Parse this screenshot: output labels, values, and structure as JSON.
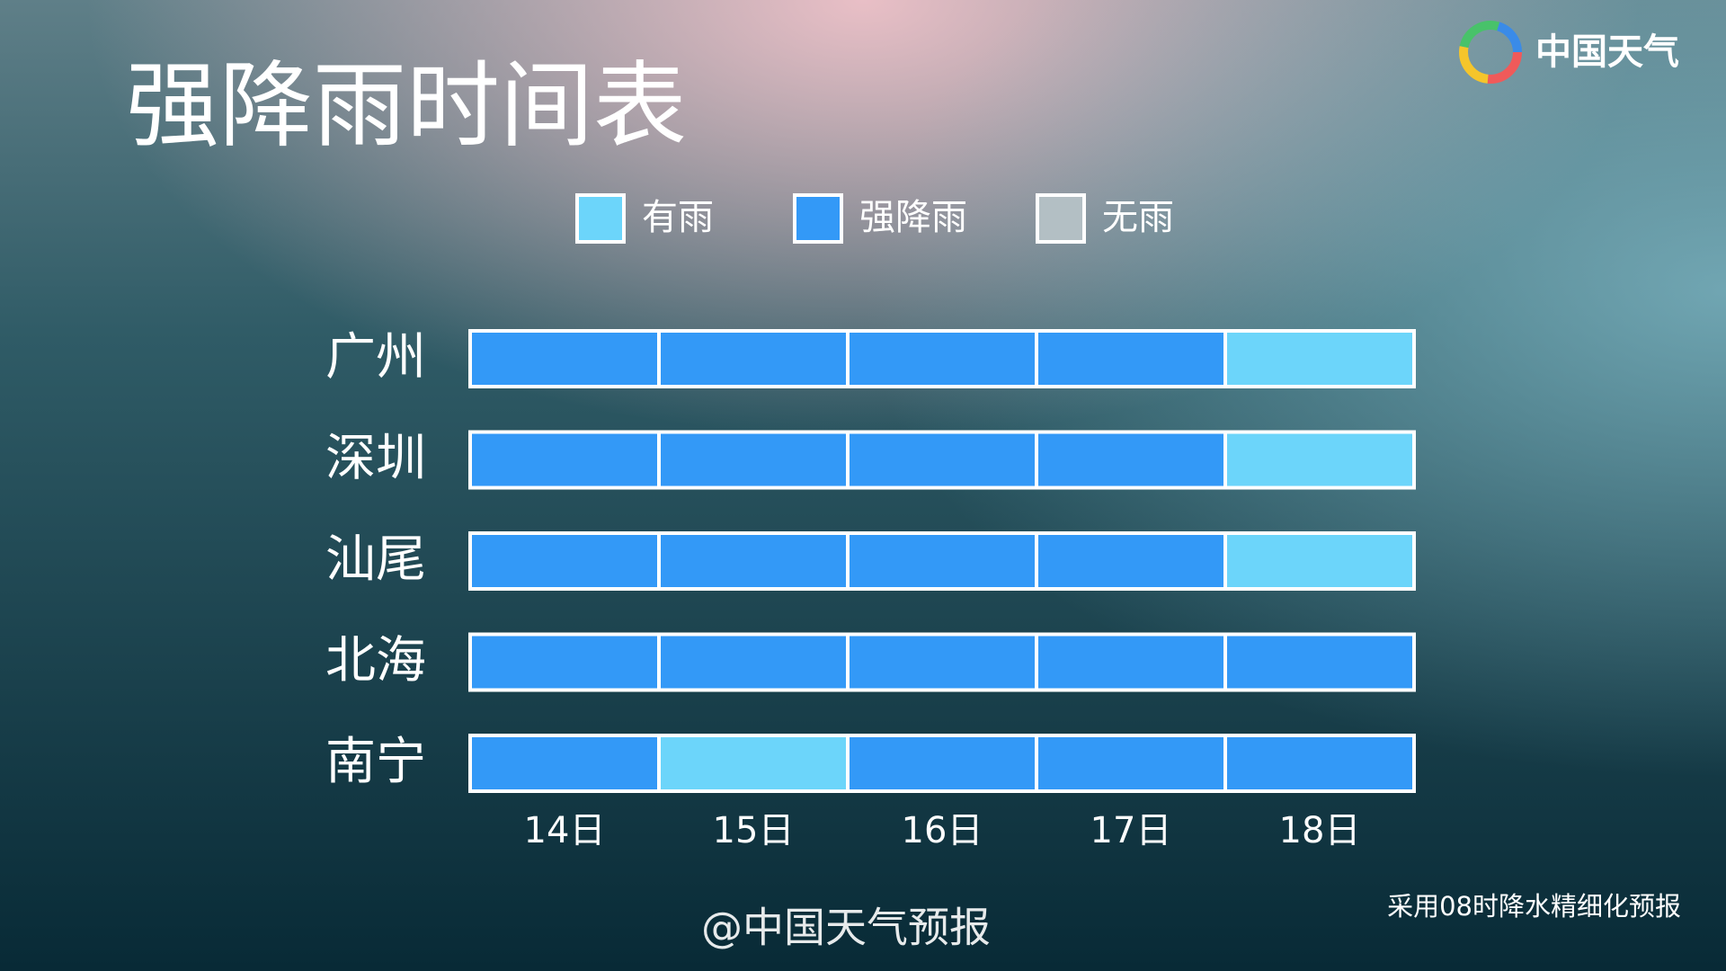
{
  "header": {
    "title": "强降雨时间表",
    "logo": "中国天气"
  },
  "legend": [
    {
      "label": "有雨",
      "color": "#6cd5fa"
    },
    {
      "label": "强降雨",
      "color": "#3399f7"
    },
    {
      "label": "无雨",
      "color": "#b3bfc4"
    }
  ],
  "columns": [
    "14日",
    "15日",
    "16日",
    "17日",
    "18日"
  ],
  "rows": [
    {
      "city": "广州",
      "cells": [
        "强降雨",
        "强降雨",
        "强降雨",
        "强降雨",
        "有雨"
      ]
    },
    {
      "city": "深圳",
      "cells": [
        "强降雨",
        "强降雨",
        "强降雨",
        "强降雨",
        "有雨"
      ]
    },
    {
      "city": "汕尾",
      "cells": [
        "强降雨",
        "强降雨",
        "强降雨",
        "强降雨",
        "有雨"
      ]
    },
    {
      "city": "北海",
      "cells": [
        "强降雨",
        "强降雨",
        "强降雨",
        "强降雨",
        "强降雨"
      ]
    },
    {
      "city": "南宁",
      "cells": [
        "强降雨",
        "有雨",
        "强降雨",
        "强降雨",
        "强降雨"
      ]
    }
  ],
  "footer": {
    "note": "采用08时降水精细化预报",
    "watermark": "@中国天气预报"
  }
}
